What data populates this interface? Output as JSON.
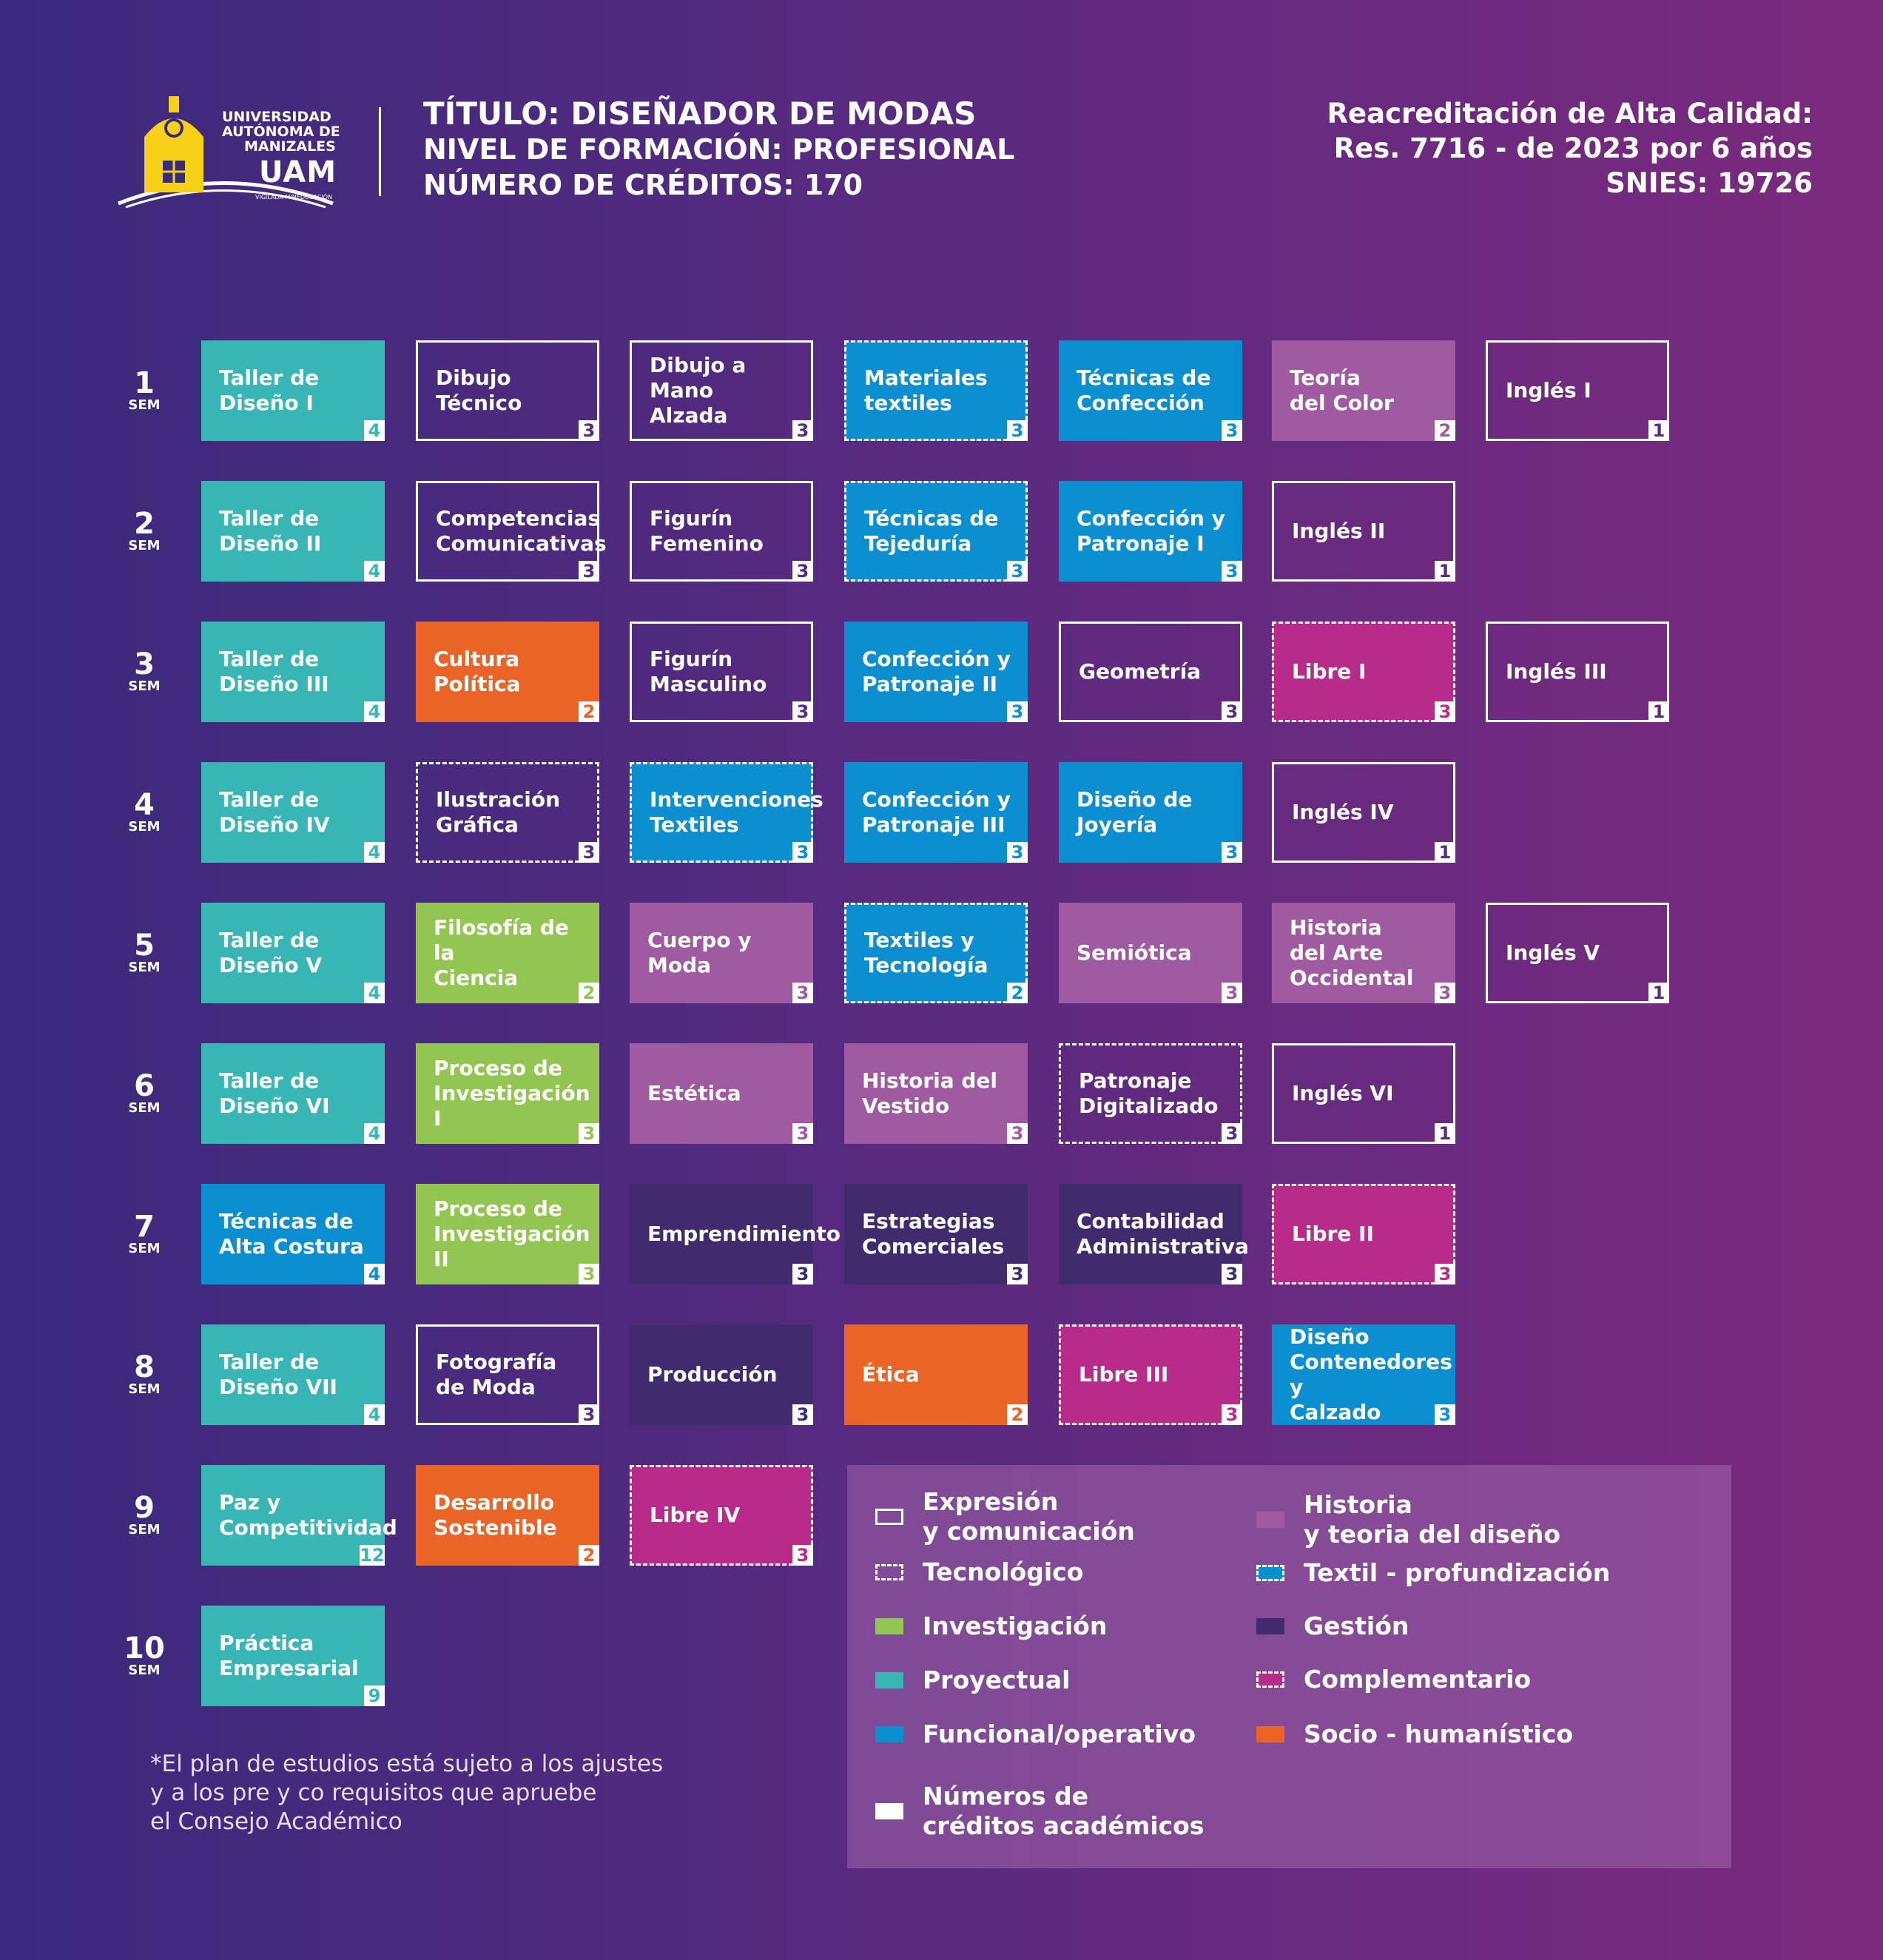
{
  "logo": {
    "line1": "UNIVERSIDAD",
    "line2": "AUTÓNOMA DE",
    "line3": "MANIZALES",
    "brand": "UAM",
    "tagline": "VIGILADA MINEDUCACIÓN"
  },
  "header": {
    "title": "TÍTULO: DISEÑADOR DE MODAS",
    "level": "NIVEL DE FORMACIÓN: PROFESIONAL",
    "credits": "NÚMERO DE CRÉDITOS: 170"
  },
  "accreditation": {
    "line1": "Reacreditación de Alta Calidad:",
    "line2": "Res. 7716 - de 2023 por 6 años",
    "line3": "SNIES: 19726"
  },
  "semesters": [
    {
      "n": "1",
      "s": "SEM"
    },
    {
      "n": "2",
      "s": "SEM"
    },
    {
      "n": "3",
      "s": "SEM"
    },
    {
      "n": "4",
      "s": "SEM"
    },
    {
      "n": "5",
      "s": "SEM"
    },
    {
      "n": "6",
      "s": "SEM"
    },
    {
      "n": "7",
      "s": "SEM"
    },
    {
      "n": "8",
      "s": "SEM"
    },
    {
      "n": "9",
      "s": "SEM"
    },
    {
      "n": "10",
      "s": "SEM"
    }
  ],
  "courses": [
    [
      {
        "name": "Taller de\nDiseño I",
        "credits": "4",
        "cat": "proy"
      },
      {
        "name": "Dibujo Técnico",
        "credits": "3",
        "cat": "expr"
      },
      {
        "name": "Dibujo a\nMano Alzada",
        "credits": "3",
        "cat": "expr"
      },
      {
        "name": "Materiales\ntextiles",
        "credits": "3",
        "cat": "tex"
      },
      {
        "name": "Técnicas de\nConfección",
        "credits": "3",
        "cat": "func"
      },
      {
        "name": "Teoría\ndel Color",
        "credits": "2",
        "cat": "hist"
      },
      {
        "name": "Inglés I",
        "credits": "1",
        "cat": "expr"
      }
    ],
    [
      {
        "name": "Taller de\nDiseño II",
        "credits": "4",
        "cat": "proy"
      },
      {
        "name": "Competencias\nComunicativas",
        "credits": "3",
        "cat": "expr"
      },
      {
        "name": "Figurín\nFemenino",
        "credits": "3",
        "cat": "expr"
      },
      {
        "name": "Técnicas de\nTejeduría",
        "credits": "3",
        "cat": "tex"
      },
      {
        "name": "Confección y\nPatronaje I",
        "credits": "3",
        "cat": "func"
      },
      {
        "name": "Inglés II",
        "credits": "1",
        "cat": "expr"
      }
    ],
    [
      {
        "name": "Taller de\nDiseño III",
        "credits": "4",
        "cat": "proy"
      },
      {
        "name": "Cultura\nPolítica",
        "credits": "2",
        "cat": "soc"
      },
      {
        "name": "Figurín\nMasculino",
        "credits": "3",
        "cat": "expr"
      },
      {
        "name": "Confección y\nPatronaje II",
        "credits": "3",
        "cat": "func"
      },
      {
        "name": "Geometría",
        "credits": "3",
        "cat": "expr"
      },
      {
        "name": "Libre I",
        "credits": "3",
        "cat": "comp"
      },
      {
        "name": "Inglés III",
        "credits": "1",
        "cat": "expr"
      }
    ],
    [
      {
        "name": "Taller de\nDiseño IV",
        "credits": "4",
        "cat": "proy"
      },
      {
        "name": "Ilustración\nGráfica",
        "credits": "3",
        "cat": "tec"
      },
      {
        "name": "Intervenciones\nTextiles",
        "credits": "3",
        "cat": "tex"
      },
      {
        "name": "Confección y\nPatronaje III",
        "credits": "3",
        "cat": "func"
      },
      {
        "name": "Diseño de\nJoyería",
        "credits": "3",
        "cat": "func"
      },
      {
        "name": "Inglés IV",
        "credits": "1",
        "cat": "expr"
      }
    ],
    [
      {
        "name": "Taller de\nDiseño V",
        "credits": "4",
        "cat": "proy"
      },
      {
        "name": "Filosofía de la\nCiencia",
        "credits": "2",
        "cat": "inv"
      },
      {
        "name": "Cuerpo y Moda",
        "credits": "3",
        "cat": "hist"
      },
      {
        "name": "Textiles y\nTecnología",
        "credits": "2",
        "cat": "tex"
      },
      {
        "name": "Semiótica",
        "credits": "3",
        "cat": "hist"
      },
      {
        "name": "Historia\ndel Arte\nOccidental",
        "credits": "3",
        "cat": "hist"
      },
      {
        "name": "Inglés V",
        "credits": "1",
        "cat": "expr"
      }
    ],
    [
      {
        "name": "Taller de\nDiseño VI",
        "credits": "4",
        "cat": "proy"
      },
      {
        "name": "Proceso de\nInvestigación I",
        "credits": "3",
        "cat": "inv"
      },
      {
        "name": "Estética",
        "credits": "3",
        "cat": "hist"
      },
      {
        "name": "Historia del\nVestido",
        "credits": "3",
        "cat": "hist"
      },
      {
        "name": "Patronaje\nDigitalizado",
        "credits": "3",
        "cat": "tec"
      },
      {
        "name": "Inglés VI",
        "credits": "1",
        "cat": "expr"
      }
    ],
    [
      {
        "name": "Técnicas de\nAlta Costura",
        "credits": "4",
        "cat": "func"
      },
      {
        "name": "Proceso de\nInvestigación II",
        "credits": "3",
        "cat": "inv"
      },
      {
        "name": "Emprendimiento",
        "credits": "3",
        "cat": "gest"
      },
      {
        "name": "Estrategias\nComerciales",
        "credits": "3",
        "cat": "gest"
      },
      {
        "name": "Contabilidad\nAdministrativa",
        "credits": "3",
        "cat": "gest"
      },
      {
        "name": "Libre II",
        "credits": "3",
        "cat": "comp"
      }
    ],
    [
      {
        "name": "Taller de\nDiseño VII",
        "credits": "4",
        "cat": "proy"
      },
      {
        "name": "Fotografía\nde Moda",
        "credits": "3",
        "cat": "expr"
      },
      {
        "name": "Producción",
        "credits": "3",
        "cat": "gest"
      },
      {
        "name": "Ética",
        "credits": "2",
        "cat": "soc"
      },
      {
        "name": "Libre III",
        "credits": "3",
        "cat": "comp"
      },
      {
        "name": "Diseño\nContenedores y\nCalzado",
        "credits": "3",
        "cat": "func"
      }
    ],
    [
      {
        "name": "Paz y\nCompetitividad",
        "credits": "12",
        "cat": "proy"
      },
      {
        "name": "Desarrollo\nSostenible",
        "credits": "2",
        "cat": "soc"
      },
      {
        "name": "Libre IV",
        "credits": "3",
        "cat": "comp"
      }
    ],
    [
      {
        "name": "Práctica\nEmpresarial",
        "credits": "9",
        "cat": "proy"
      }
    ]
  ],
  "legend": {
    "expr": "Expresión\ny comunicación",
    "tec": "Tecnológico",
    "inv": "Investigación",
    "proy": "Proyectual",
    "func": "Funcional/operativo",
    "num": "Números de\ncréditos académicos",
    "hist": "Historia\ny teoria del diseño",
    "tex": "Textil - profundización",
    "gest": "Gestión",
    "comp": "Complementario",
    "soc": "Socio - humanístico"
  },
  "colors": {
    "proy": "#38b5b5",
    "func": "#0c8fd0",
    "inv": "#92c651",
    "soc": "#ea6428",
    "hist": "#a05aa1",
    "gest": "#3f2b6e",
    "comp": "#b82b8a",
    "tex": "#0c8fd0"
  },
  "footnote": "*El plan de estudios está sujeto a los ajustes\ny a los pre y co requisitos que apruebe\nel Consejo Académico"
}
